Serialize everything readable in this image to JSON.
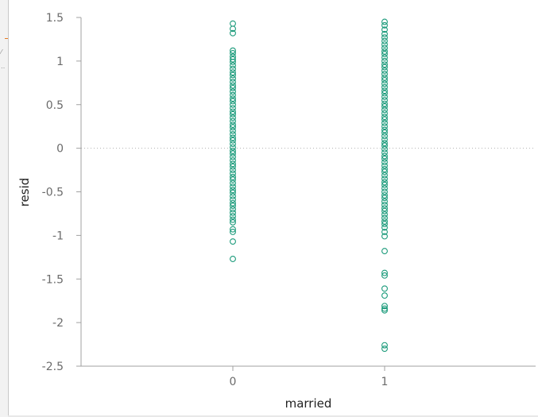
{
  "chart_data": {
    "type": "scatter",
    "title": "",
    "xlabel": "married",
    "ylabel": "resid",
    "xlim": [
      -1,
      2
    ],
    "ylim": [
      -2.5,
      1.5
    ],
    "x_ticks": [
      "0",
      "1"
    ],
    "y_ticks": [
      "-2.5",
      "-2",
      "-1.5",
      "-1",
      "-0.5",
      "0",
      "0.5",
      "1",
      "1.5"
    ],
    "reference_line": {
      "y": 0,
      "style": "dotted"
    },
    "grid": false,
    "series": [
      {
        "marker": "open-circle",
        "color": "#1a9a7a",
        "points": [
          {
            "x": 0,
            "y": 1.43
          },
          {
            "x": 0,
            "y": 1.37
          },
          {
            "x": 0,
            "y": 1.32
          },
          {
            "x": 0,
            "y": 1.12
          },
          {
            "x": 0,
            "y": 1.09
          },
          {
            "x": 0,
            "y": 1.05
          },
          {
            "x": 0,
            "y": 1.02
          },
          {
            "x": 0,
            "y": 0.99
          },
          {
            "x": 0,
            "y": 0.95
          },
          {
            "x": 0,
            "y": 0.91
          },
          {
            "x": 0,
            "y": 0.87
          },
          {
            "x": 0,
            "y": 0.84
          },
          {
            "x": 0,
            "y": 0.8
          },
          {
            "x": 0,
            "y": 0.76
          },
          {
            "x": 0,
            "y": 0.72
          },
          {
            "x": 0,
            "y": 0.69
          },
          {
            "x": 0,
            "y": 0.65
          },
          {
            "x": 0,
            "y": 0.61
          },
          {
            "x": 0,
            "y": 0.57
          },
          {
            "x": 0,
            "y": 0.54
          },
          {
            "x": 0,
            "y": 0.5
          },
          {
            "x": 0,
            "y": 0.46
          },
          {
            "x": 0,
            "y": 0.42
          },
          {
            "x": 0,
            "y": 0.39
          },
          {
            "x": 0,
            "y": 0.35
          },
          {
            "x": 0,
            "y": 0.31
          },
          {
            "x": 0,
            "y": 0.27
          },
          {
            "x": 0,
            "y": 0.24
          },
          {
            "x": 0,
            "y": 0.2
          },
          {
            "x": 0,
            "y": 0.16
          },
          {
            "x": 0,
            "y": 0.12
          },
          {
            "x": 0,
            "y": 0.09
          },
          {
            "x": 0,
            "y": 0.05
          },
          {
            "x": 0,
            "y": 0.01
          },
          {
            "x": 0,
            "y": -0.03
          },
          {
            "x": 0,
            "y": -0.06
          },
          {
            "x": 0,
            "y": -0.1
          },
          {
            "x": 0,
            "y": -0.14
          },
          {
            "x": 0,
            "y": -0.18
          },
          {
            "x": 0,
            "y": -0.21
          },
          {
            "x": 0,
            "y": -0.25
          },
          {
            "x": 0,
            "y": -0.29
          },
          {
            "x": 0,
            "y": -0.33
          },
          {
            "x": 0,
            "y": -0.36
          },
          {
            "x": 0,
            "y": -0.4
          },
          {
            "x": 0,
            "y": -0.44
          },
          {
            "x": 0,
            "y": -0.48
          },
          {
            "x": 0,
            "y": -0.51
          },
          {
            "x": 0,
            "y": -0.55
          },
          {
            "x": 0,
            "y": -0.59
          },
          {
            "x": 0,
            "y": -0.63
          },
          {
            "x": 0,
            "y": -0.66
          },
          {
            "x": 0,
            "y": -0.7
          },
          {
            "x": 0,
            "y": -0.74
          },
          {
            "x": 0,
            "y": -0.78
          },
          {
            "x": 0,
            "y": -0.82
          },
          {
            "x": 0,
            "y": -0.85
          },
          {
            "x": 0,
            "y": -0.93
          },
          {
            "x": 0,
            "y": -0.96
          },
          {
            "x": 0,
            "y": -1.07
          },
          {
            "x": 0,
            "y": -1.27
          },
          {
            "x": 1,
            "y": 1.45
          },
          {
            "x": 1,
            "y": 1.41
          },
          {
            "x": 1,
            "y": 1.36
          },
          {
            "x": 1,
            "y": 1.31
          },
          {
            "x": 1,
            "y": 1.27
          },
          {
            "x": 1,
            "y": 1.23
          },
          {
            "x": 1,
            "y": 1.19
          },
          {
            "x": 1,
            "y": 1.15
          },
          {
            "x": 1,
            "y": 1.11
          },
          {
            "x": 1,
            "y": 1.08
          },
          {
            "x": 1,
            "y": 1.04
          },
          {
            "x": 1,
            "y": 1.0
          },
          {
            "x": 1,
            "y": 0.96
          },
          {
            "x": 1,
            "y": 0.93
          },
          {
            "x": 1,
            "y": 0.89
          },
          {
            "x": 1,
            "y": 0.85
          },
          {
            "x": 1,
            "y": 0.81
          },
          {
            "x": 1,
            "y": 0.78
          },
          {
            "x": 1,
            "y": 0.74
          },
          {
            "x": 1,
            "y": 0.7
          },
          {
            "x": 1,
            "y": 0.66
          },
          {
            "x": 1,
            "y": 0.63
          },
          {
            "x": 1,
            "y": 0.59
          },
          {
            "x": 1,
            "y": 0.55
          },
          {
            "x": 1,
            "y": 0.51
          },
          {
            "x": 1,
            "y": 0.48
          },
          {
            "x": 1,
            "y": 0.44
          },
          {
            "x": 1,
            "y": 0.4
          },
          {
            "x": 1,
            "y": 0.36
          },
          {
            "x": 1,
            "y": 0.33
          },
          {
            "x": 1,
            "y": 0.29
          },
          {
            "x": 1,
            "y": 0.25
          },
          {
            "x": 1,
            "y": 0.21
          },
          {
            "x": 1,
            "y": 0.18
          },
          {
            "x": 1,
            "y": 0.14
          },
          {
            "x": 1,
            "y": 0.1
          },
          {
            "x": 1,
            "y": 0.06
          },
          {
            "x": 1,
            "y": 0.03
          },
          {
            "x": 1,
            "y": -0.01
          },
          {
            "x": 1,
            "y": -0.05
          },
          {
            "x": 1,
            "y": -0.09
          },
          {
            "x": 1,
            "y": -0.12
          },
          {
            "x": 1,
            "y": -0.16
          },
          {
            "x": 1,
            "y": -0.2
          },
          {
            "x": 1,
            "y": -0.24
          },
          {
            "x": 1,
            "y": -0.27
          },
          {
            "x": 1,
            "y": -0.31
          },
          {
            "x": 1,
            "y": -0.35
          },
          {
            "x": 1,
            "y": -0.39
          },
          {
            "x": 1,
            "y": -0.42
          },
          {
            "x": 1,
            "y": -0.46
          },
          {
            "x": 1,
            "y": -0.5
          },
          {
            "x": 1,
            "y": -0.54
          },
          {
            "x": 1,
            "y": -0.57
          },
          {
            "x": 1,
            "y": -0.61
          },
          {
            "x": 1,
            "y": -0.65
          },
          {
            "x": 1,
            "y": -0.69
          },
          {
            "x": 1,
            "y": -0.72
          },
          {
            "x": 1,
            "y": -0.76
          },
          {
            "x": 1,
            "y": -0.8
          },
          {
            "x": 1,
            "y": -0.84
          },
          {
            "x": 1,
            "y": -0.87
          },
          {
            "x": 1,
            "y": -0.91
          },
          {
            "x": 1,
            "y": -0.96
          },
          {
            "x": 1,
            "y": -1.01
          },
          {
            "x": 1,
            "y": -1.18
          },
          {
            "x": 1,
            "y": -1.43
          },
          {
            "x": 1,
            "y": -1.46
          },
          {
            "x": 1,
            "y": -1.61
          },
          {
            "x": 1,
            "y": -1.69
          },
          {
            "x": 1,
            "y": -1.81
          },
          {
            "x": 1,
            "y": -1.84
          },
          {
            "x": 1,
            "y": -1.86
          },
          {
            "x": 1,
            "y": -2.26
          },
          {
            "x": 1,
            "y": -2.3
          }
        ]
      }
    ]
  },
  "colors": {
    "marker": "#1a9a7a",
    "axis": "#a0a0a0",
    "zero_line": "#b0b0b0",
    "tick_text": "#6b6b6b",
    "title_text": "#222222"
  }
}
